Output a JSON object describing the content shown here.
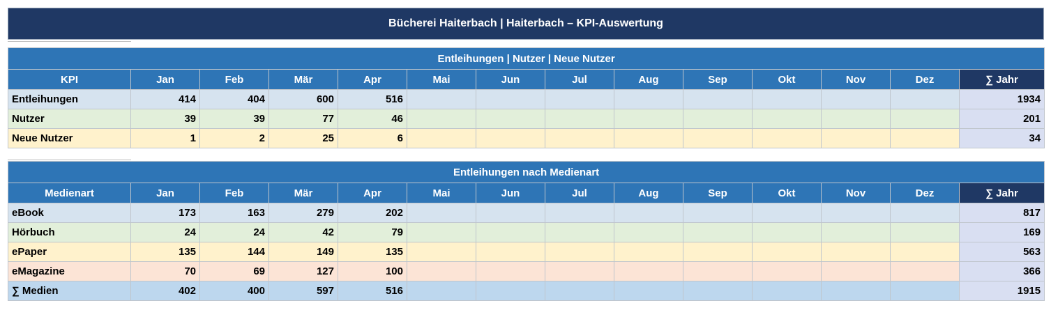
{
  "title": "Bücherei Haiterbach  |  Haiterbach – KPI-Auswertung",
  "months": [
    "Jan",
    "Feb",
    "Mär",
    "Apr",
    "Mai",
    "Jun",
    "Jul",
    "Aug",
    "Sep",
    "Okt",
    "Nov",
    "Dez"
  ],
  "sum_label": "∑ Jahr",
  "kpi_table": {
    "section_title": "Entleihungen | Nutzer | Neue Nutzer",
    "first_col_header": "KPI",
    "rows": [
      {
        "label": "Entleihungen",
        "values": [
          "414",
          "404",
          "600",
          "516",
          "",
          "",
          "",
          "",
          "",
          "",
          "",
          ""
        ],
        "sum": "1934",
        "color": "c-blue"
      },
      {
        "label": "Nutzer",
        "values": [
          "39",
          "39",
          "77",
          "46",
          "",
          "",
          "",
          "",
          "",
          "",
          "",
          ""
        ],
        "sum": "201",
        "color": "c-green"
      },
      {
        "label": "Neue Nutzer",
        "values": [
          "1",
          "2",
          "25",
          "6",
          "",
          "",
          "",
          "",
          "",
          "",
          "",
          ""
        ],
        "sum": "34",
        "color": "c-yellow"
      }
    ]
  },
  "media_table": {
    "section_title": "Entleihungen nach Medienart",
    "first_col_header": "Medienart",
    "rows": [
      {
        "label": "eBook",
        "values": [
          "173",
          "163",
          "279",
          "202",
          "",
          "",
          "",
          "",
          "",
          "",
          "",
          ""
        ],
        "sum": "817",
        "color": "c-blue"
      },
      {
        "label": "Hörbuch",
        "values": [
          "24",
          "24",
          "42",
          "79",
          "",
          "",
          "",
          "",
          "",
          "",
          "",
          ""
        ],
        "sum": "169",
        "color": "c-green"
      },
      {
        "label": "ePaper",
        "values": [
          "135",
          "144",
          "149",
          "135",
          "",
          "",
          "",
          "",
          "",
          "",
          "",
          ""
        ],
        "sum": "563",
        "color": "c-yellow"
      },
      {
        "label": "eMagazine",
        "values": [
          "70",
          "69",
          "127",
          "100",
          "",
          "",
          "",
          "",
          "",
          "",
          "",
          ""
        ],
        "sum": "366",
        "color": "c-pink"
      },
      {
        "label": "∑ Medien",
        "values": [
          "402",
          "400",
          "597",
          "516",
          "",
          "",
          "",
          "",
          "",
          "",
          "",
          ""
        ],
        "sum": "1915",
        "color": "c-total"
      }
    ]
  }
}
